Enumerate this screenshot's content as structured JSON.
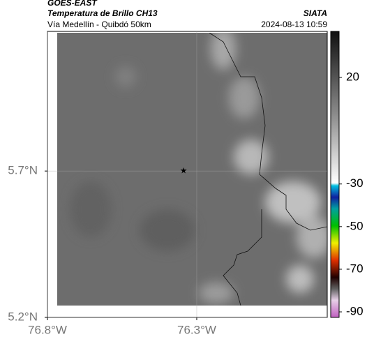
{
  "header": {
    "product": "GOES-EAST",
    "title": "Temperatura de Brillo CH13",
    "subtitle": "Vía Medellín - Quibdó 50km",
    "source": "SIATA",
    "datetime": "2024-08-13 10:59"
  },
  "map": {
    "xlim": [
      -76.8,
      -75.863
    ],
    "ylim": [
      5.2,
      6.177
    ],
    "xticks": [
      {
        "value": -76.8,
        "label": "76.8°W"
      },
      {
        "value": -76.3,
        "label": "76.3°W"
      }
    ],
    "yticks": [
      {
        "value": 5.2,
        "label": "5.2°N"
      },
      {
        "value": 5.7,
        "label": "5.7°N"
      }
    ],
    "grid": true,
    "marker": {
      "lon": -76.344,
      "lat": 5.7
    }
  },
  "colorbar": {
    "clim": [
      -92.6,
      41.6
    ],
    "ticks": [
      20,
      -30,
      -50,
      -70,
      -90
    ]
  }
}
